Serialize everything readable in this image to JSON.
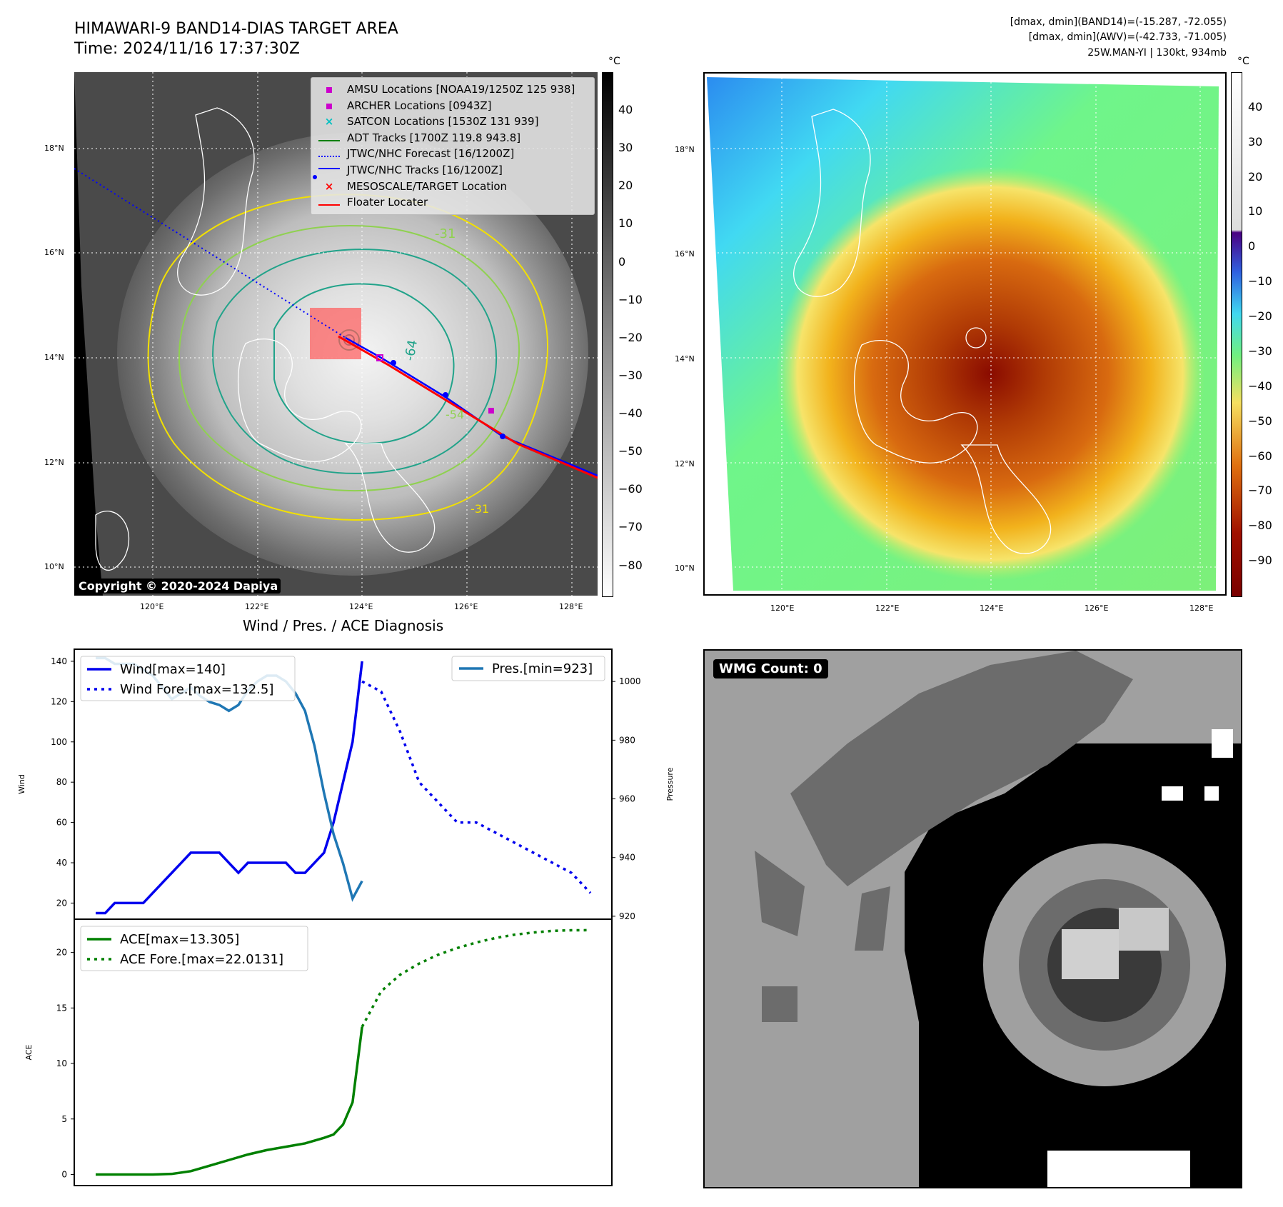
{
  "header": {
    "title_line1": "HIMAWARI-9 BAND14-DIAS TARGET AREA",
    "title_line2": "Time: 2024/11/16 17:37:30Z",
    "info_line1": "[dmax, dmin](BAND14)=(-15.287, -72.055)",
    "info_line2": "[dmax, dmin](AWV)=(-42.733, -71.005)",
    "info_line3": "25W.MAN-YI | 130kt, 934mb"
  },
  "maps": {
    "lon_ticks": [
      "120°E",
      "122°E",
      "124°E",
      "126°E",
      "128°E"
    ],
    "lat_ticks": [
      "18°N",
      "16°N",
      "14°N",
      "12°N",
      "10°N"
    ],
    "unit": "°C",
    "copyright": "Copyright © 2020-2024 Dapiya",
    "gray_colorbar_ticks": [
      "40",
      "30",
      "20",
      "10",
      "0",
      "−10",
      "−20",
      "−30",
      "−40",
      "−50",
      "−60",
      "−70",
      "−80"
    ],
    "color_colorbar_ticks": [
      "40",
      "30",
      "20",
      "10",
      "0",
      "−10",
      "−20",
      "−30",
      "−40",
      "−50",
      "−60",
      "−70",
      "−80",
      "−90"
    ],
    "contour_labels": [
      "-31",
      "-64",
      "-54",
      "-31"
    ],
    "legend": [
      {
        "label": "AMSU Locations [NOAA19/1250Z 125 938]",
        "color": "#cc00cc",
        "marker": "square"
      },
      {
        "label": "ARCHER Locations [0943Z]",
        "color": "#cc00cc",
        "marker": "square"
      },
      {
        "label": "SATCON Locations [1530Z 131 939]",
        "color": "#00c0c0",
        "marker": "x"
      },
      {
        "label": "ADT Tracks [1700Z 119.8 943.8]",
        "color": "#008000",
        "marker": "line"
      },
      {
        "label": "JTWC/NHC Forecast [16/1200Z]",
        "color": "#0000ff",
        "marker": "dotted"
      },
      {
        "label": "JTWC/NHC Tracks [16/1200Z]",
        "color": "#0000ff",
        "marker": "line-dot"
      },
      {
        "label": "MESOSCALE/TARGET Location",
        "color": "#ff0000",
        "marker": "x"
      },
      {
        "label": "Floater Locater",
        "color": "#ff0000",
        "marker": "line"
      }
    ]
  },
  "wmg": {
    "label": "WMG Count: 0"
  },
  "chart_data": [
    {
      "type": "line",
      "title": "Wind / Pres. / ACE Diagnosis",
      "ylabel": "Wind",
      "y2label": "Pressure",
      "ylim": [
        12,
        146
      ],
      "y2lim": [
        919,
        1011
      ],
      "yticks": [
        20,
        40,
        60,
        80,
        100,
        120,
        140
      ],
      "y2ticks": [
        920,
        940,
        960,
        980,
        1000
      ],
      "series": [
        {
          "name": "Wind[max=140]",
          "axis": "left",
          "style": "solid",
          "color": "#0000ee",
          "x": [
            0,
            1,
            2,
            3,
            4,
            5,
            6,
            7,
            8,
            9,
            10,
            11,
            12,
            13,
            14,
            15,
            16,
            17,
            18,
            19,
            20,
            21,
            22,
            23,
            24,
            25,
            26,
            27,
            28
          ],
          "values": [
            15,
            15,
            20,
            20,
            20,
            20,
            25,
            30,
            35,
            40,
            45,
            45,
            45,
            45,
            40,
            35,
            40,
            40,
            40,
            40,
            40,
            35,
            35,
            40,
            45,
            60,
            80,
            100,
            140
          ]
        },
        {
          "name": "Wind Fore.[max=132.5]",
          "axis": "left",
          "style": "dotted",
          "color": "#0000ee",
          "x": [
            28,
            30,
            32,
            34,
            36,
            38,
            40,
            42,
            44,
            46,
            48,
            50,
            52
          ],
          "values": [
            130,
            125,
            105,
            80,
            70,
            60,
            60,
            55,
            50,
            45,
            40,
            35,
            25
          ]
        },
        {
          "name": "Pres.[min=923]",
          "axis": "right",
          "style": "solid",
          "color": "#1f77b4",
          "x": [
            0,
            1,
            2,
            3,
            4,
            5,
            6,
            7,
            8,
            9,
            10,
            11,
            12,
            13,
            14,
            15,
            16,
            17,
            18,
            19,
            20,
            21,
            22,
            23,
            24,
            25,
            26,
            27,
            28
          ],
          "values": [
            1008,
            1008,
            1006,
            1006,
            1006,
            1004,
            1002,
            998,
            994,
            996,
            998,
            995,
            993,
            992,
            990,
            992,
            997,
            1000,
            1002,
            1002,
            1000,
            996,
            990,
            978,
            962,
            948,
            938,
            926,
            932
          ]
        }
      ]
    },
    {
      "type": "line",
      "ylabel": "ACE",
      "ylim": [
        -1,
        23
      ],
      "yticks": [
        0,
        5,
        10,
        15,
        20
      ],
      "series": [
        {
          "name": "ACE[max=13.305]",
          "style": "solid",
          "color": "#008000",
          "x": [
            0,
            2,
            4,
            6,
            8,
            10,
            12,
            14,
            16,
            18,
            20,
            22,
            24,
            25,
            26,
            27,
            28
          ],
          "values": [
            0,
            0,
            0,
            0,
            0.05,
            0.3,
            0.8,
            1.3,
            1.8,
            2.2,
            2.5,
            2.8,
            3.3,
            3.6,
            4.5,
            6.5,
            13.3
          ]
        },
        {
          "name": "ACE Fore.[max=22.0131]",
          "style": "dotted",
          "color": "#008000",
          "x": [
            28,
            30,
            32,
            34,
            36,
            38,
            40,
            42,
            44,
            46,
            48,
            50,
            52
          ],
          "values": [
            13.3,
            16.5,
            18,
            19,
            19.8,
            20.4,
            20.9,
            21.3,
            21.6,
            21.8,
            21.95,
            22,
            22.01
          ]
        }
      ]
    }
  ]
}
